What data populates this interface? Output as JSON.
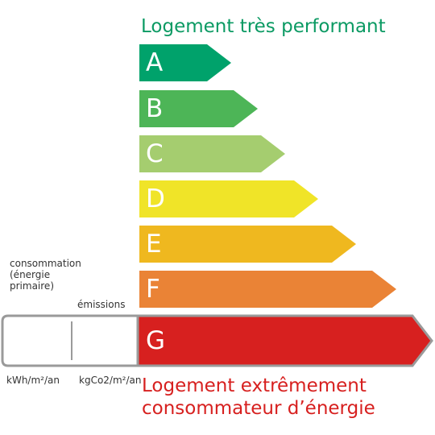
{
  "header": {
    "title": "Logement très performant"
  },
  "classes": [
    {
      "letter": "A",
      "color": "#00a26b"
    },
    {
      "letter": "B",
      "color": "#4db557"
    },
    {
      "letter": "C",
      "color": "#a5cd6f"
    },
    {
      "letter": "D",
      "color": "#f0e428"
    },
    {
      "letter": "E",
      "color": "#efb81f"
    },
    {
      "letter": "F",
      "color": "#ea8336"
    },
    {
      "letter": "G",
      "color": "#d7201f"
    }
  ],
  "labels": {
    "consumption": "consommation (énergie primaire)",
    "emissions": "émissions",
    "consumption_unit": "kWh/m²/an",
    "emissions_unit": "kgCo2/m²/an"
  },
  "footer": {
    "title_line1": "Logement extrêmement",
    "title_line2": "consommateur d’énergie"
  }
}
